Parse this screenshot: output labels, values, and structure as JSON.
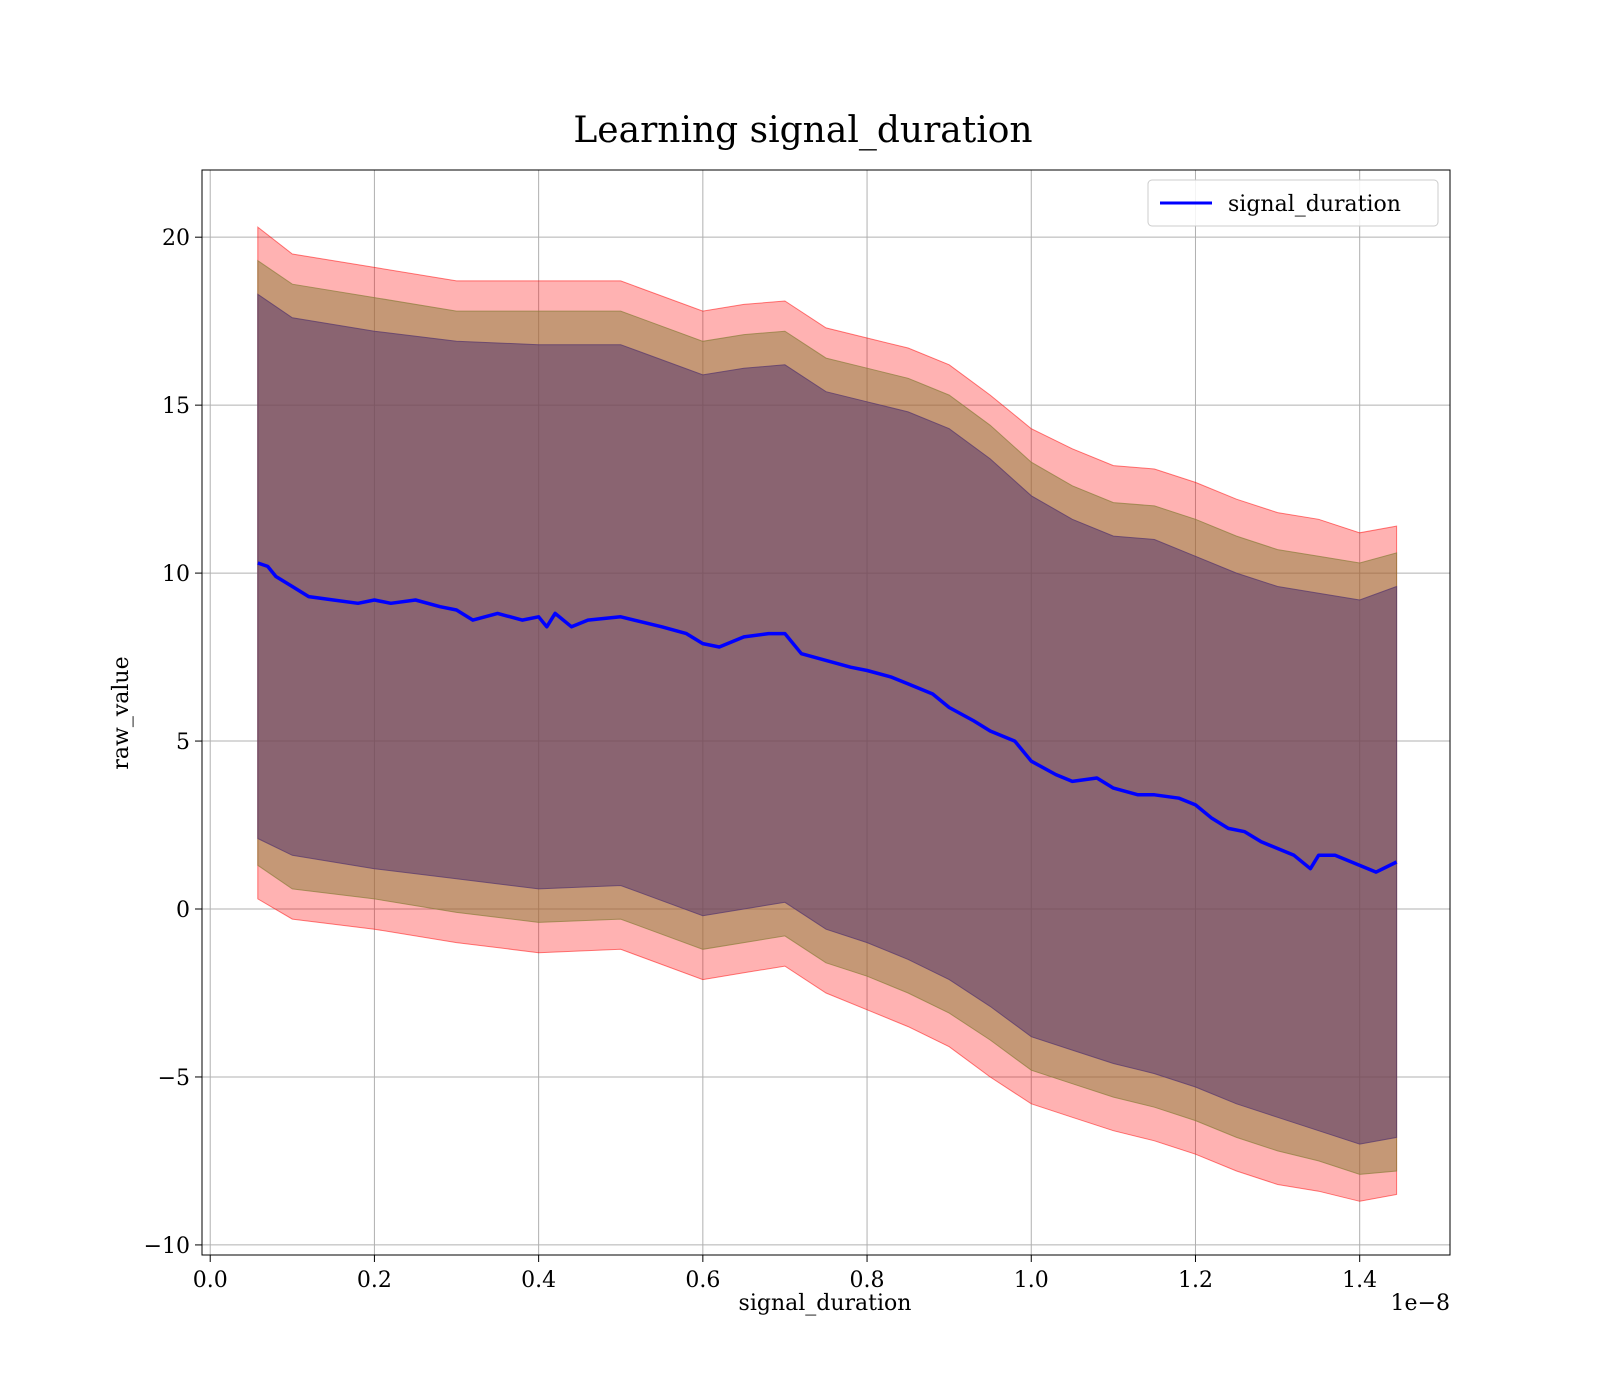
{
  "chart_data": {
    "type": "line",
    "title": "Learning signal_duration",
    "xlabel": "signal_duration",
    "ylabel": "raw_value",
    "x_offset_label": "1e−8",
    "xlim": [
      -0.01,
      1.51
    ],
    "ylim": [
      -10.3,
      22.0
    ],
    "x_ticks": [
      0.0,
      0.2,
      0.4,
      0.6,
      0.8,
      1.0,
      1.2,
      1.4
    ],
    "x_tick_labels": [
      "0.0",
      "0.2",
      "0.4",
      "0.6",
      "0.8",
      "1.0",
      "1.2",
      "1.4"
    ],
    "y_ticks": [
      -10,
      -5,
      0,
      5,
      10,
      15,
      20
    ],
    "y_tick_labels": [
      "−10",
      "−5",
      "0",
      "5",
      "10",
      "15",
      "20"
    ],
    "grid": true,
    "legend_position": "top-right",
    "series": [
      {
        "name": "signal_duration",
        "color": "#0000ff",
        "x": [
          0.058,
          0.07,
          0.08,
          0.1,
          0.12,
          0.15,
          0.18,
          0.2,
          0.22,
          0.25,
          0.28,
          0.3,
          0.32,
          0.35,
          0.38,
          0.4,
          0.41,
          0.42,
          0.44,
          0.46,
          0.5,
          0.55,
          0.58,
          0.6,
          0.62,
          0.65,
          0.68,
          0.7,
          0.72,
          0.75,
          0.78,
          0.8,
          0.83,
          0.85,
          0.88,
          0.9,
          0.93,
          0.95,
          0.98,
          1.0,
          1.03,
          1.05,
          1.08,
          1.1,
          1.13,
          1.15,
          1.18,
          1.2,
          1.22,
          1.24,
          1.26,
          1.28,
          1.3,
          1.32,
          1.34,
          1.35,
          1.37,
          1.39,
          1.42,
          1.445
        ],
        "values": [
          10.3,
          10.2,
          9.9,
          9.6,
          9.3,
          9.2,
          9.1,
          9.2,
          9.1,
          9.2,
          9.0,
          8.9,
          8.6,
          8.8,
          8.6,
          8.7,
          8.4,
          8.8,
          8.4,
          8.6,
          8.7,
          8.4,
          8.2,
          7.9,
          7.8,
          8.1,
          8.2,
          8.2,
          7.6,
          7.4,
          7.2,
          7.1,
          6.9,
          6.7,
          6.4,
          6.0,
          5.6,
          5.3,
          5.0,
          4.4,
          4.0,
          3.8,
          3.9,
          3.6,
          3.4,
          3.4,
          3.3,
          3.1,
          2.7,
          2.4,
          2.3,
          2.0,
          1.8,
          1.6,
          1.2,
          1.6,
          1.6,
          1.4,
          1.1,
          1.4
        ]
      }
    ],
    "bands": [
      {
        "color": "#ff0000",
        "opacity": 0.3,
        "x": [
          0.058,
          0.1,
          0.2,
          0.3,
          0.4,
          0.5,
          0.6,
          0.65,
          0.7,
          0.75,
          0.8,
          0.85,
          0.9,
          0.95,
          1.0,
          1.05,
          1.1,
          1.15,
          1.2,
          1.25,
          1.3,
          1.35,
          1.4,
          1.445
        ],
        "upper": [
          20.3,
          19.5,
          19.1,
          18.7,
          18.7,
          18.7,
          17.8,
          18.0,
          18.1,
          17.3,
          17.0,
          16.7,
          16.2,
          15.3,
          14.3,
          13.7,
          13.2,
          13.1,
          12.7,
          12.2,
          11.8,
          11.6,
          11.2,
          11.4
        ],
        "lower": [
          0.3,
          -0.3,
          -0.6,
          -1.0,
          -1.3,
          -1.2,
          -2.1,
          -1.9,
          -1.7,
          -2.5,
          -3.0,
          -3.5,
          -4.1,
          -5.0,
          -5.8,
          -6.2,
          -6.6,
          -6.9,
          -7.3,
          -7.8,
          -8.2,
          -8.4,
          -8.7,
          -8.5
        ]
      },
      {
        "color": "#8b7d3a",
        "opacity": 0.5,
        "x": [
          0.058,
          0.1,
          0.2,
          0.3,
          0.4,
          0.5,
          0.6,
          0.65,
          0.7,
          0.75,
          0.8,
          0.85,
          0.9,
          0.95,
          1.0,
          1.05,
          1.1,
          1.15,
          1.2,
          1.25,
          1.3,
          1.35,
          1.4,
          1.445
        ],
        "upper": [
          19.3,
          18.6,
          18.2,
          17.8,
          17.8,
          17.8,
          16.9,
          17.1,
          17.2,
          16.4,
          16.1,
          15.8,
          15.3,
          14.4,
          13.3,
          12.6,
          12.1,
          12.0,
          11.6,
          11.1,
          10.7,
          10.5,
          10.3,
          10.6
        ],
        "lower": [
          1.3,
          0.6,
          0.3,
          -0.1,
          -0.4,
          -0.3,
          -1.2,
          -1.0,
          -0.8,
          -1.6,
          -2.0,
          -2.5,
          -3.1,
          -3.9,
          -4.8,
          -5.2,
          -5.6,
          -5.9,
          -6.3,
          -6.8,
          -7.2,
          -7.5,
          -7.9,
          -7.8
        ]
      },
      {
        "color": "#5a3a6e",
        "opacity": 0.55,
        "x": [
          0.058,
          0.1,
          0.2,
          0.3,
          0.4,
          0.5,
          0.6,
          0.65,
          0.7,
          0.75,
          0.8,
          0.85,
          0.9,
          0.95,
          1.0,
          1.05,
          1.1,
          1.15,
          1.2,
          1.25,
          1.3,
          1.35,
          1.4,
          1.445
        ],
        "upper": [
          18.3,
          17.6,
          17.2,
          16.9,
          16.8,
          16.8,
          15.9,
          16.1,
          16.2,
          15.4,
          15.1,
          14.8,
          14.3,
          13.4,
          12.3,
          11.6,
          11.1,
          11.0,
          10.5,
          10.0,
          9.6,
          9.4,
          9.2,
          9.6
        ],
        "lower": [
          2.1,
          1.6,
          1.2,
          0.9,
          0.6,
          0.7,
          -0.2,
          0.0,
          0.2,
          -0.6,
          -1.0,
          -1.5,
          -2.1,
          -2.9,
          -3.8,
          -4.2,
          -4.6,
          -4.9,
          -5.3,
          -5.8,
          -6.2,
          -6.6,
          -7.0,
          -6.8
        ]
      }
    ]
  }
}
